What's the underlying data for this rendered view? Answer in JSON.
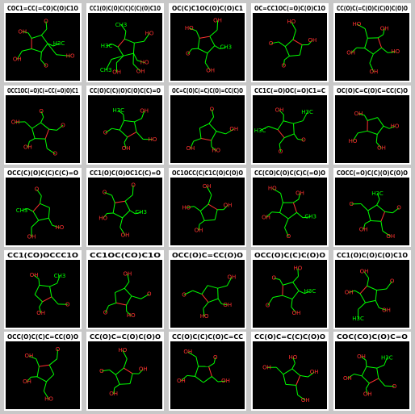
{
  "cells": [
    {
      "smiles": "COC1=CC(=CO)C(O)C1O",
      "atoms": [
        "H3C",
        "O",
        "OH",
        "OH",
        "O",
        "HO"
      ]
    },
    {
      "smiles": "CC1(O)C(O)C(C)C(C)(O)C1O",
      "atoms": [
        "HO",
        "OH",
        "H3C",
        "CH3",
        "HO",
        "OH",
        "CH3"
      ]
    },
    {
      "smiles": "OC(C)C1OC(O)C(O)C1",
      "atoms": [
        "OH",
        "O",
        "HO",
        "OH",
        "CH3"
      ]
    },
    {
      "smiles": "OC=CC1OC(=O)C(O)C1O",
      "atoms": [
        "O",
        "O",
        "HO",
        "OH"
      ]
    },
    {
      "smiles": "CC(O)C(=C(O)C(C)O)C(O)O",
      "atoms": [
        "OH",
        "HO",
        "OH",
        "HO",
        "OH"
      ]
    },
    {
      "smiles": "OCC1OC(=O)C(=CC(=O)O)C1",
      "atoms": [
        "OH",
        "O",
        "O",
        "O",
        "OH"
      ]
    },
    {
      "smiles": "CC(O)C(C)(O)C(O)C(C)=O",
      "atoms": [
        "H3C",
        "OH",
        "HO",
        "OH",
        "O"
      ]
    },
    {
      "smiles": "OC=C(O)C(=C)C(O)=CC(C)O",
      "atoms": [
        "O",
        "OH",
        "HO",
        "OH"
      ]
    },
    {
      "smiles": "CC1C(=O)OC(=O)C1=C",
      "atoms": [
        "H3C",
        "O",
        "O",
        "H3C",
        "OH"
      ]
    },
    {
      "smiles": "OC(O)C=C(O)C=CC(C)O",
      "atoms": [
        "HO",
        "OH",
        "HO",
        "OH"
      ]
    },
    {
      "smiles": "OCC(C)(O)C(C)C(C)=O",
      "atoms": [
        "HO",
        "OH",
        "CH3",
        "O"
      ]
    },
    {
      "smiles": "CC1(O)C(O)OC1C(C)=O",
      "atoms": [
        "OH",
        "HO",
        "O",
        "O",
        "CH3"
      ]
    },
    {
      "smiles": "OC1OCC(C)C1C(O)C(O)O",
      "atoms": [
        "OH",
        "HO",
        "OH",
        "OH"
      ]
    },
    {
      "smiles": "CC(CO)C(O)C(C)C(=O)O",
      "atoms": [
        "OH",
        "HO",
        "OH",
        "CH3",
        "O"
      ]
    },
    {
      "smiles": "COCC(=O)C(C)(O)C(O)O",
      "atoms": [
        "O",
        "H3C",
        "O",
        "OH",
        "OH"
      ]
    },
    {
      "smiles": "CC1(CO)OCCC1O",
      "atoms": [
        "OH",
        "CH3",
        "O",
        "OH"
      ]
    },
    {
      "smiles": "CC1OC(CO)C1O",
      "atoms": [
        "OH",
        "O",
        "HO",
        "O"
      ]
    },
    {
      "smiles": "OCC(O)C=CC(O)O",
      "atoms": [
        "OH",
        "OH",
        "HO",
        "O"
      ]
    },
    {
      "smiles": "OCC(O)C(C)C(O)O",
      "atoms": [
        "H3C",
        "OH",
        "O",
        "O",
        "HO"
      ]
    },
    {
      "smiles": "CC1(O)C(O)C(O)C1O",
      "atoms": [
        "OH",
        "H3C",
        "OH",
        "OH",
        "O"
      ]
    },
    {
      "smiles": "OCC(O)C(C)C=CC(O)O",
      "atoms": [
        "HO",
        "OH",
        "OH",
        "O"
      ]
    },
    {
      "smiles": "CC(O)C=C(O)C(O)O",
      "atoms": [
        "OH",
        "O",
        "HO",
        "OH"
      ]
    },
    {
      "smiles": "CC(O)C(C)C(O)C=CC",
      "atoms": [
        "OH",
        "OH",
        "O",
        "OH"
      ]
    },
    {
      "smiles": "CC(O)C=C(C)C(O)O",
      "atoms": [
        "OH",
        "HO",
        "OH",
        "OH"
      ]
    },
    {
      "smiles": "COC(CO)C(O)C=O",
      "atoms": [
        "OH",
        "H3C",
        "O",
        "OH",
        "OH"
      ]
    }
  ]
}
